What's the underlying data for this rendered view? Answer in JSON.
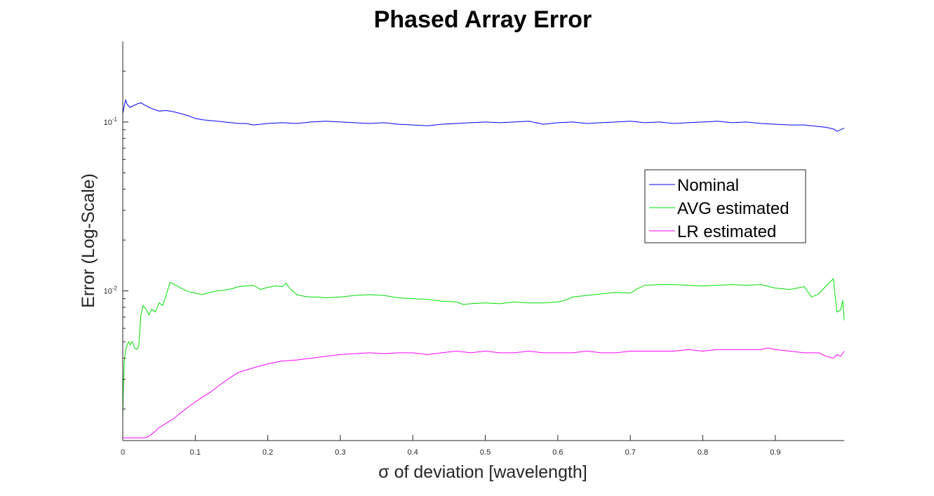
{
  "chart_data": {
    "type": "line",
    "title": "Phased Array Error",
    "xlabel": "σ of deviation [wavelength]",
    "ylabel": "Error (Log-Scale)",
    "xlim": [
      0,
      0.995
    ],
    "ylim": [
      0.0013,
      0.3
    ],
    "yscale": "log",
    "grid": false,
    "legend_position": "upper-right",
    "x_ticks": [
      0,
      0.1,
      0.2,
      0.3,
      0.4,
      0.5,
      0.6,
      0.7,
      0.8,
      0.9
    ],
    "x_tick_labels": [
      "0",
      "0.1",
      "0.2",
      "0.3",
      "0.4",
      "0.5",
      "0.6",
      "0.7",
      "0.8",
      "0.9"
    ],
    "y_ticks": [
      0.1,
      0.01
    ],
    "y_tick_labels": [
      {
        "base": "10",
        "exp": "-1"
      },
      {
        "base": "10",
        "exp": "-2"
      }
    ],
    "series": [
      {
        "name": "Nominal",
        "color": "#0000ff",
        "x": [
          0,
          0.002,
          0.004,
          0.006,
          0.01,
          0.015,
          0.02,
          0.025,
          0.03,
          0.035,
          0.04,
          0.05,
          0.06,
          0.07,
          0.08,
          0.09,
          0.1,
          0.11,
          0.12,
          0.13,
          0.14,
          0.15,
          0.16,
          0.17,
          0.18,
          0.19,
          0.2,
          0.22,
          0.24,
          0.26,
          0.28,
          0.3,
          0.32,
          0.34,
          0.36,
          0.38,
          0.4,
          0.42,
          0.44,
          0.46,
          0.48,
          0.5,
          0.52,
          0.54,
          0.56,
          0.58,
          0.6,
          0.62,
          0.64,
          0.66,
          0.68,
          0.7,
          0.72,
          0.74,
          0.76,
          0.78,
          0.8,
          0.82,
          0.84,
          0.86,
          0.88,
          0.9,
          0.92,
          0.94,
          0.96,
          0.97,
          0.98,
          0.985,
          0.99,
          0.995
        ],
        "values": [
          0.112,
          0.125,
          0.135,
          0.127,
          0.122,
          0.125,
          0.128,
          0.13,
          0.126,
          0.123,
          0.12,
          0.116,
          0.117,
          0.115,
          0.112,
          0.109,
          0.105,
          0.103,
          0.102,
          0.101,
          0.1,
          0.099,
          0.098,
          0.098,
          0.096,
          0.097,
          0.098,
          0.099,
          0.098,
          0.1,
          0.101,
          0.1,
          0.099,
          0.098,
          0.099,
          0.097,
          0.096,
          0.095,
          0.097,
          0.098,
          0.099,
          0.1,
          0.099,
          0.1,
          0.101,
          0.097,
          0.099,
          0.1,
          0.098,
          0.099,
          0.1,
          0.101,
          0.099,
          0.1,
          0.098,
          0.099,
          0.1,
          0.101,
          0.099,
          0.1,
          0.098,
          0.097,
          0.096,
          0.096,
          0.094,
          0.093,
          0.091,
          0.088,
          0.09,
          0.092
        ]
      },
      {
        "name": "AVG estimated",
        "color": "#00e000",
        "x": [
          0,
          0.001,
          0.002,
          0.004,
          0.006,
          0.008,
          0.01,
          0.013,
          0.016,
          0.019,
          0.022,
          0.025,
          0.028,
          0.032,
          0.036,
          0.04,
          0.045,
          0.05,
          0.055,
          0.06,
          0.065,
          0.07,
          0.08,
          0.09,
          0.1,
          0.11,
          0.12,
          0.13,
          0.14,
          0.15,
          0.16,
          0.17,
          0.18,
          0.19,
          0.2,
          0.21,
          0.22,
          0.225,
          0.23,
          0.24,
          0.25,
          0.26,
          0.27,
          0.28,
          0.3,
          0.32,
          0.34,
          0.36,
          0.38,
          0.4,
          0.42,
          0.44,
          0.46,
          0.47,
          0.48,
          0.5,
          0.52,
          0.54,
          0.56,
          0.58,
          0.6,
          0.61,
          0.62,
          0.64,
          0.66,
          0.68,
          0.7,
          0.71,
          0.72,
          0.74,
          0.76,
          0.78,
          0.8,
          0.82,
          0.84,
          0.86,
          0.88,
          0.9,
          0.92,
          0.93,
          0.94,
          0.95,
          0.96,
          0.97,
          0.975,
          0.98,
          0.985,
          0.99,
          0.993,
          0.995
        ],
        "values": [
          0.0018,
          0.0028,
          0.0038,
          0.0045,
          0.0048,
          0.005,
          0.0048,
          0.005,
          0.0046,
          0.0045,
          0.0047,
          0.0072,
          0.0082,
          0.0078,
          0.0072,
          0.0078,
          0.0075,
          0.0085,
          0.0082,
          0.0095,
          0.0112,
          0.011,
          0.0104,
          0.0099,
          0.0097,
          0.0095,
          0.0098,
          0.01,
          0.0101,
          0.0103,
          0.0106,
          0.0107,
          0.0108,
          0.0102,
          0.0105,
          0.0107,
          0.0106,
          0.0111,
          0.0104,
          0.0095,
          0.0093,
          0.0092,
          0.0092,
          0.0091,
          0.0092,
          0.0094,
          0.0095,
          0.0094,
          0.0091,
          0.009,
          0.0089,
          0.0087,
          0.0086,
          0.0083,
          0.0084,
          0.0085,
          0.0084,
          0.0086,
          0.0085,
          0.0085,
          0.0086,
          0.0088,
          0.0092,
          0.0094,
          0.0096,
          0.0098,
          0.0097,
          0.0103,
          0.0108,
          0.0109,
          0.0109,
          0.0108,
          0.0107,
          0.0108,
          0.0109,
          0.0108,
          0.0109,
          0.0104,
          0.0102,
          0.0104,
          0.0106,
          0.0092,
          0.0096,
          0.0107,
          0.0112,
          0.0118,
          0.0075,
          0.0077,
          0.0088,
          0.0067
        ]
      },
      {
        "name": "LR estimated",
        "color": "#ff00ff",
        "x": [
          0,
          0.01,
          0.02,
          0.03,
          0.035,
          0.04,
          0.045,
          0.05,
          0.06,
          0.07,
          0.08,
          0.09,
          0.1,
          0.11,
          0.12,
          0.13,
          0.14,
          0.15,
          0.16,
          0.17,
          0.18,
          0.19,
          0.2,
          0.22,
          0.24,
          0.26,
          0.28,
          0.3,
          0.32,
          0.34,
          0.36,
          0.38,
          0.4,
          0.42,
          0.44,
          0.46,
          0.48,
          0.5,
          0.52,
          0.54,
          0.56,
          0.58,
          0.6,
          0.62,
          0.64,
          0.66,
          0.68,
          0.7,
          0.72,
          0.74,
          0.76,
          0.78,
          0.8,
          0.82,
          0.84,
          0.86,
          0.88,
          0.89,
          0.9,
          0.92,
          0.94,
          0.96,
          0.97,
          0.98,
          0.985,
          0.99,
          0.995
        ],
        "values": [
          0.00135,
          0.00135,
          0.00135,
          0.00135,
          0.00137,
          0.00142,
          0.00148,
          0.00155,
          0.00165,
          0.00175,
          0.0019,
          0.00205,
          0.0022,
          0.00235,
          0.0025,
          0.0027,
          0.0029,
          0.0031,
          0.0033,
          0.0034,
          0.0035,
          0.0036,
          0.0037,
          0.00385,
          0.0039,
          0.004,
          0.0041,
          0.0042,
          0.00425,
          0.0043,
          0.00425,
          0.0043,
          0.0043,
          0.0042,
          0.0043,
          0.0044,
          0.0043,
          0.0044,
          0.0043,
          0.0043,
          0.0044,
          0.0043,
          0.0043,
          0.0043,
          0.0044,
          0.0043,
          0.0043,
          0.0044,
          0.0044,
          0.0044,
          0.0044,
          0.0045,
          0.0044,
          0.0045,
          0.0045,
          0.0045,
          0.0045,
          0.0046,
          0.0045,
          0.0044,
          0.0043,
          0.0043,
          0.0041,
          0.004,
          0.0042,
          0.0041,
          0.0044
        ]
      }
    ]
  }
}
